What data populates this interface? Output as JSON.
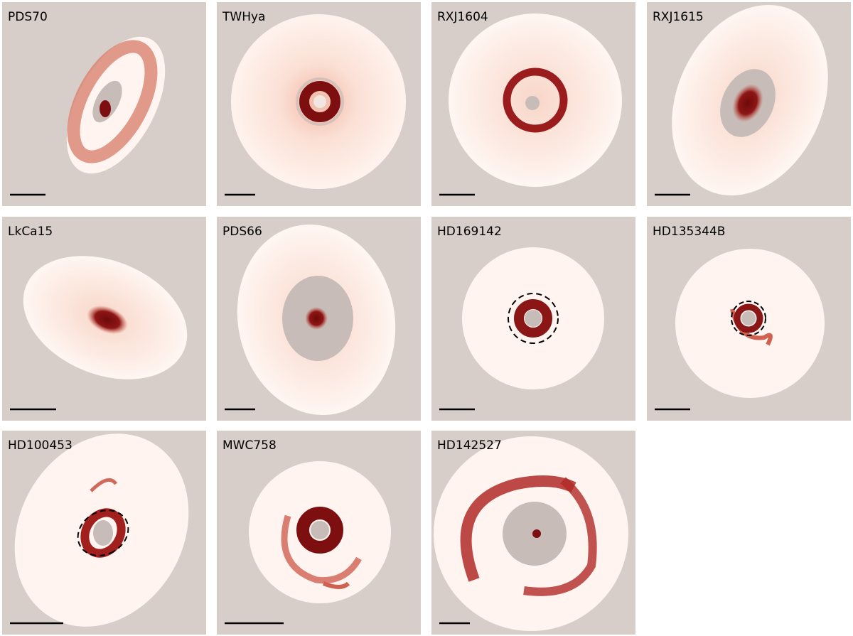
{
  "panels": [
    {
      "label": "PDS70"
    },
    {
      "label": "TWHya"
    },
    {
      "label": "RXJ1604"
    },
    {
      "label": "RXJ1615"
    },
    {
      "label": "LkCa15"
    },
    {
      "label": "PDS66"
    },
    {
      "label": "HD169142"
    },
    {
      "label": "HD135344B"
    },
    {
      "label": "HD100453"
    },
    {
      "label": "MWC758"
    },
    {
      "label": "HD142527"
    }
  ]
}
